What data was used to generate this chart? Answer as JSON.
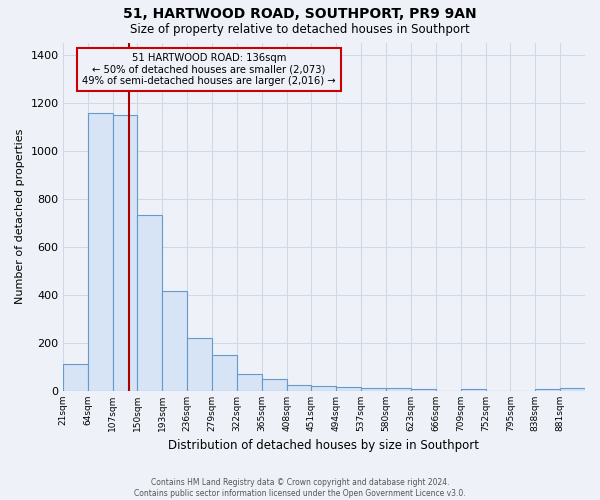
{
  "title": "51, HARTWOOD ROAD, SOUTHPORT, PR9 9AN",
  "subtitle": "Size of property relative to detached houses in Southport",
  "xlabel": "Distribution of detached houses by size in Southport",
  "ylabel": "Number of detached properties",
  "bin_labels": [
    "21sqm",
    "64sqm",
    "107sqm",
    "150sqm",
    "193sqm",
    "236sqm",
    "279sqm",
    "322sqm",
    "365sqm",
    "408sqm",
    "451sqm",
    "494sqm",
    "537sqm",
    "580sqm",
    "623sqm",
    "666sqm",
    "709sqm",
    "752sqm",
    "795sqm",
    "838sqm",
    "881sqm"
  ],
  "bar_heights": [
    110,
    1155,
    1150,
    730,
    415,
    220,
    150,
    70,
    50,
    25,
    18,
    15,
    10,
    10,
    5,
    0,
    5,
    0,
    0,
    5,
    10
  ],
  "bar_color": "#d6e4f5",
  "bar_edge_color": "#6699cc",
  "annotation_title": "51 HARTWOOD ROAD: 136sqm",
  "annotation_line1": "← 50% of detached houses are smaller (2,073)",
  "annotation_line2": "49% of semi-detached houses are larger (2,016) →",
  "annotation_box_edge": "#cc0000",
  "vline_x": 136,
  "vline_color": "#aa0000",
  "ylim": [
    0,
    1450
  ],
  "yticks": [
    0,
    200,
    400,
    600,
    800,
    1000,
    1200,
    1400
  ],
  "bin_edges": [
    21,
    64,
    107,
    150,
    193,
    236,
    279,
    322,
    365,
    408,
    451,
    494,
    537,
    580,
    623,
    666,
    709,
    752,
    795,
    838,
    881
  ],
  "bin_width": 43,
  "footer_line1": "Contains HM Land Registry data © Crown copyright and database right 2024.",
  "footer_line2": "Contains public sector information licensed under the Open Government Licence v3.0.",
  "bg_color": "#eef2f8",
  "grid_color": "#d0d8e8"
}
